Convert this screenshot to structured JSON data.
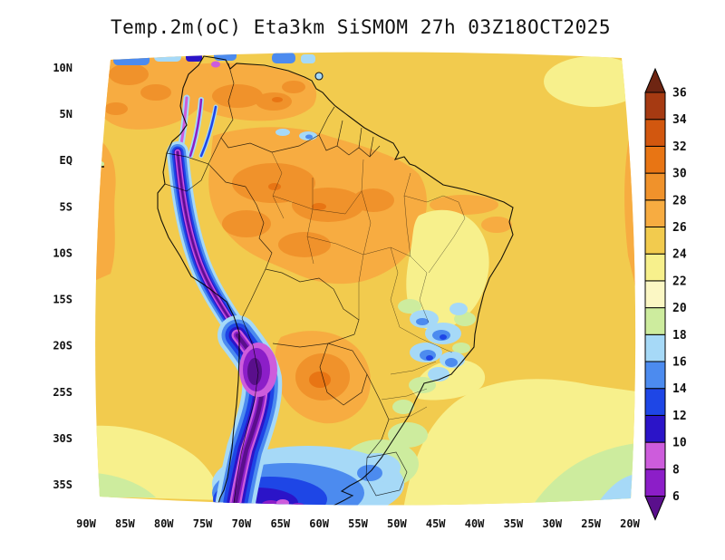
{
  "title": "Temp.2m(oC) Eta3km SiSMOM 27h 03Z18OCT2025",
  "axes": {
    "lat_ticks": [
      "10N",
      "5N",
      "EQ",
      "5S",
      "10S",
      "15S",
      "20S",
      "25S",
      "30S",
      "35S"
    ],
    "lon_ticks": [
      "90W",
      "85W",
      "80W",
      "75W",
      "70W",
      "65W",
      "60W",
      "55W",
      "50W",
      "45W",
      "40W",
      "35W",
      "30W",
      "25W",
      "20W"
    ]
  },
  "colorbar": {
    "labels_top_to_bottom": [
      "36",
      "34",
      "32",
      "30",
      "28",
      "26",
      "24",
      "22",
      "20",
      "18",
      "16",
      "14",
      "12",
      "10",
      "8",
      "6"
    ],
    "colors_bottom_to_top": [
      "#5A0F8C",
      "#8C1EC8",
      "#CD5CDC",
      "#2B14C8",
      "#1E46E6",
      "#4C8BEF",
      "#A6D9F7",
      "#CDEC9E",
      "#FBF7C4",
      "#F7F08C",
      "#F2CB4E",
      "#F7AC41",
      "#F0922B",
      "#E87514",
      "#D2570F",
      "#A63A12",
      "#6E2512"
    ]
  },
  "chart_data": {
    "type": "heatmap",
    "subtype": "filled-contour-weather-map",
    "title": "Temp.2m(oC) Eta3km SiSMOM 27h 03Z18OCT2025",
    "variable": "Temp.2m",
    "units": "oC",
    "model": "Eta3km SiSMOM",
    "forecast_hour": "27h",
    "valid_time": "03Z18OCT2025",
    "region": "South America",
    "lon_range": [
      "90W",
      "20W"
    ],
    "lat_range": [
      "35S",
      "10N"
    ],
    "contour_levels": [
      6,
      8,
      10,
      12,
      14,
      16,
      18,
      20,
      22,
      24,
      26,
      28,
      30,
      32,
      34,
      36
    ],
    "palette_bottom_to_top": [
      "#5A0F8C",
      "#8C1EC8",
      "#CD5CDC",
      "#2B14C8",
      "#1E46E6",
      "#4C8BEF",
      "#A6D9F7",
      "#CDEC9E",
      "#FBF7C4",
      "#F7F08C",
      "#F2CB4E",
      "#F7AC41",
      "#F0922B",
      "#E87514",
      "#D2570F",
      "#A63A12",
      "#6E2512"
    ],
    "field_summary": [
      {
        "area": "Andes cordillera from Ecuador to southern Chile",
        "temp_oC": "below 6 (purple/violet band)"
      },
      {
        "area": "Amazon basin, Venezuela and northern Brazil",
        "temp_oC": "26-30"
      },
      {
        "area": "Paraguay / Gran Chaco",
        "temp_oC": "28-32"
      },
      {
        "area": "Southeast Brazil highlands",
        "temp_oC": "14-20 (patchy blues)"
      },
      {
        "area": "Southern Argentina and Uruguay (bottom of domain)",
        "temp_oC": "6-18"
      },
      {
        "area": "Tropical Atlantic and Pacific oceans",
        "temp_oC": "22-26"
      },
      {
        "area": "Southeastern Atlantic corner of domain",
        "temp_oC": "16-22"
      }
    ]
  }
}
